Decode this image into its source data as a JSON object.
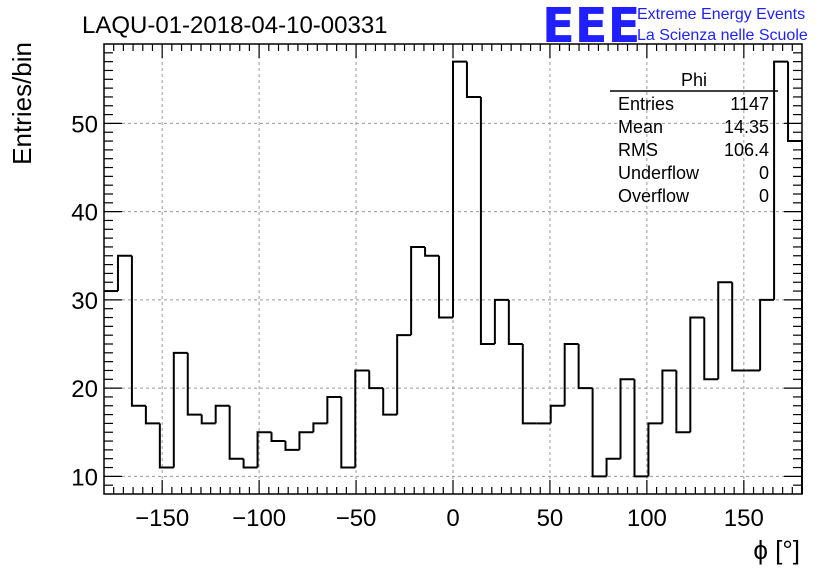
{
  "title": "LAQU-01-2018-04-10-00331",
  "logo": {
    "mark": "EEE",
    "line1": "Extreme Energy Events",
    "line2": "La Scienza nelle Scuole"
  },
  "stats": {
    "name": "Phi",
    "rows": [
      {
        "label": "Entries",
        "value": "1147"
      },
      {
        "label": "Mean",
        "value": "14.35"
      },
      {
        "label": "RMS",
        "value": "106.4"
      },
      {
        "label": "Underflow",
        "value": "0"
      },
      {
        "label": "Overflow",
        "value": "0"
      }
    ]
  },
  "chart_data": {
    "type": "histogram",
    "title": "LAQU-01-2018-04-10-00331",
    "xlabel": "ϕ [°]",
    "ylabel": "Entries/bin",
    "xlim": [
      -180,
      180
    ],
    "ylim": [
      8,
      59
    ],
    "bin_width": 7.2,
    "x_ticks": [
      -150,
      -100,
      -50,
      0,
      50,
      100,
      150
    ],
    "x_tick_labels": [
      "−150",
      "−100",
      "−50",
      "0",
      "50",
      "100",
      "150"
    ],
    "y_ticks": [
      10,
      20,
      30,
      40,
      50
    ],
    "y_tick_labels": [
      "10",
      "20",
      "30",
      "40",
      "50"
    ],
    "grid": true,
    "legend": "stats box top-right",
    "line_color": "#000000",
    "bin_edges_start": -180,
    "values": [
      31,
      35,
      18,
      16,
      11,
      24,
      17,
      16,
      18,
      12,
      11,
      15,
      14,
      13,
      15,
      16,
      19,
      11,
      22,
      20,
      17,
      26,
      36,
      35,
      28,
      57,
      53,
      25,
      30,
      25,
      16,
      16,
      18,
      25,
      20,
      10,
      12,
      21,
      10,
      16,
      22,
      15,
      28,
      21,
      32,
      22,
      22,
      30,
      57,
      48
    ]
  }
}
